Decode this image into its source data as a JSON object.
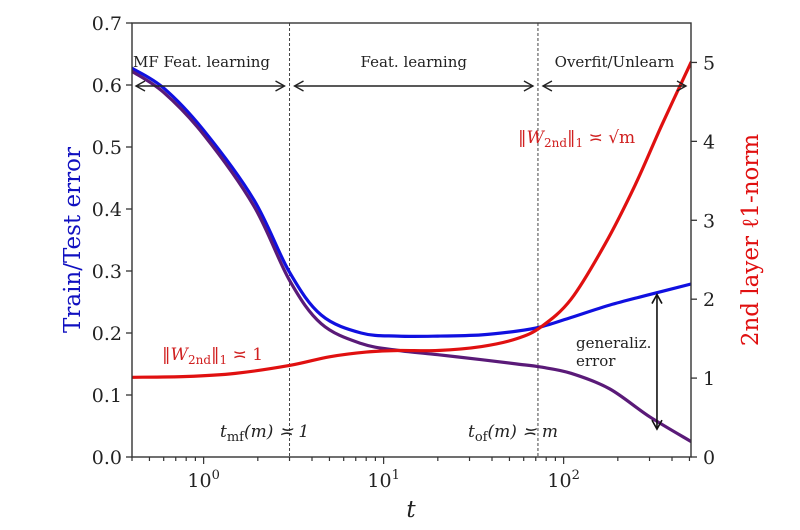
{
  "chart_data": {
    "type": "line",
    "title": "",
    "xlabel": "t",
    "xscale": "log",
    "xlim": [
      0.4,
      510
    ],
    "x_ticks": [
      {
        "value": 1,
        "label": "10",
        "exp": "0"
      },
      {
        "value": 10,
        "label": "10",
        "exp": "1"
      },
      {
        "value": 100,
        "label": "10",
        "exp": "2"
      }
    ],
    "ylabel_left": "Train/Test error",
    "ylim_left": [
      0.0,
      0.7
    ],
    "y_ticks_left": [
      "0.0",
      "0.1",
      "0.2",
      "0.3",
      "0.4",
      "0.5",
      "0.6",
      "0.7"
    ],
    "ylabel_right": "2nd layer ℓ1-norm",
    "ylim_right": [
      0,
      5.5
    ],
    "y_ticks_right": [
      "0",
      "1",
      "2",
      "3",
      "4",
      "5"
    ],
    "colors": {
      "test": "#1010e0",
      "train": "#5a1a78",
      "norm": "#e01010",
      "axis": "#333333"
    },
    "series": [
      {
        "name": "Test error",
        "axis": "left",
        "x": [
          0.4,
          0.6,
          1.0,
          1.9,
          3.0,
          4.5,
          7.5,
          12,
          20,
          35,
          55,
          75,
          110,
          180,
          300,
          510
        ],
        "y": [
          0.627,
          0.595,
          0.527,
          0.415,
          0.298,
          0.229,
          0.2,
          0.195,
          0.195,
          0.197,
          0.203,
          0.21,
          0.225,
          0.245,
          0.262,
          0.279
        ]
      },
      {
        "name": "Train error",
        "axis": "left",
        "x": [
          0.4,
          0.6,
          1.0,
          1.9,
          3.0,
          4.5,
          7.5,
          12,
          20,
          35,
          55,
          75,
          110,
          180,
          300,
          510
        ],
        "y": [
          0.622,
          0.588,
          0.52,
          0.405,
          0.285,
          0.215,
          0.183,
          0.172,
          0.165,
          0.157,
          0.15,
          0.145,
          0.135,
          0.11,
          0.065,
          0.025
        ]
      },
      {
        "name": "2nd layer l1-norm",
        "axis": "right",
        "x": [
          0.4,
          0.8,
          1.5,
          3.0,
          5.0,
          8.0,
          12,
          20,
          35,
          55,
          75,
          110,
          170,
          250,
          350,
          510
        ],
        "y": [
          1.01,
          1.02,
          1.06,
          1.16,
          1.27,
          1.33,
          1.35,
          1.35,
          1.4,
          1.5,
          1.65,
          2.0,
          2.7,
          3.45,
          4.2,
          5.0
        ]
      }
    ],
    "vlines": [
      {
        "x": 3.0,
        "label": "t_mf(m) ≍ 1"
      },
      {
        "x": 72,
        "label": "t_of(m) ≍ m"
      }
    ],
    "regions": [
      {
        "label": "MF Feat. learning",
        "from": 0.4,
        "to": 3.0
      },
      {
        "label": "Feat. learning",
        "from": 3.0,
        "to": 72
      },
      {
        "label": "Overfit/Unlearn",
        "from": 72,
        "to": 510
      }
    ],
    "annotations": {
      "norm_small": {
        "text_main": "‖W",
        "sub": "2nd",
        "rest": "‖",
        "sub2": "1",
        "rel": " ≍ 1"
      },
      "norm_large": {
        "text_main": "‖W",
        "sub": "2nd",
        "rest": "‖",
        "sub2": "1",
        "rel": " ≍ √m"
      },
      "t_mf": {
        "t": "t",
        "sub": "mf",
        "rest": "(m) ≍ 1"
      },
      "t_of": {
        "t": "t",
        "sub": "of",
        "rest": "(m) ≍ m"
      },
      "gen_error": {
        "line1": "generaliz.",
        "line2": "error",
        "x": 330,
        "from": 0.045,
        "to": 0.262
      }
    }
  }
}
